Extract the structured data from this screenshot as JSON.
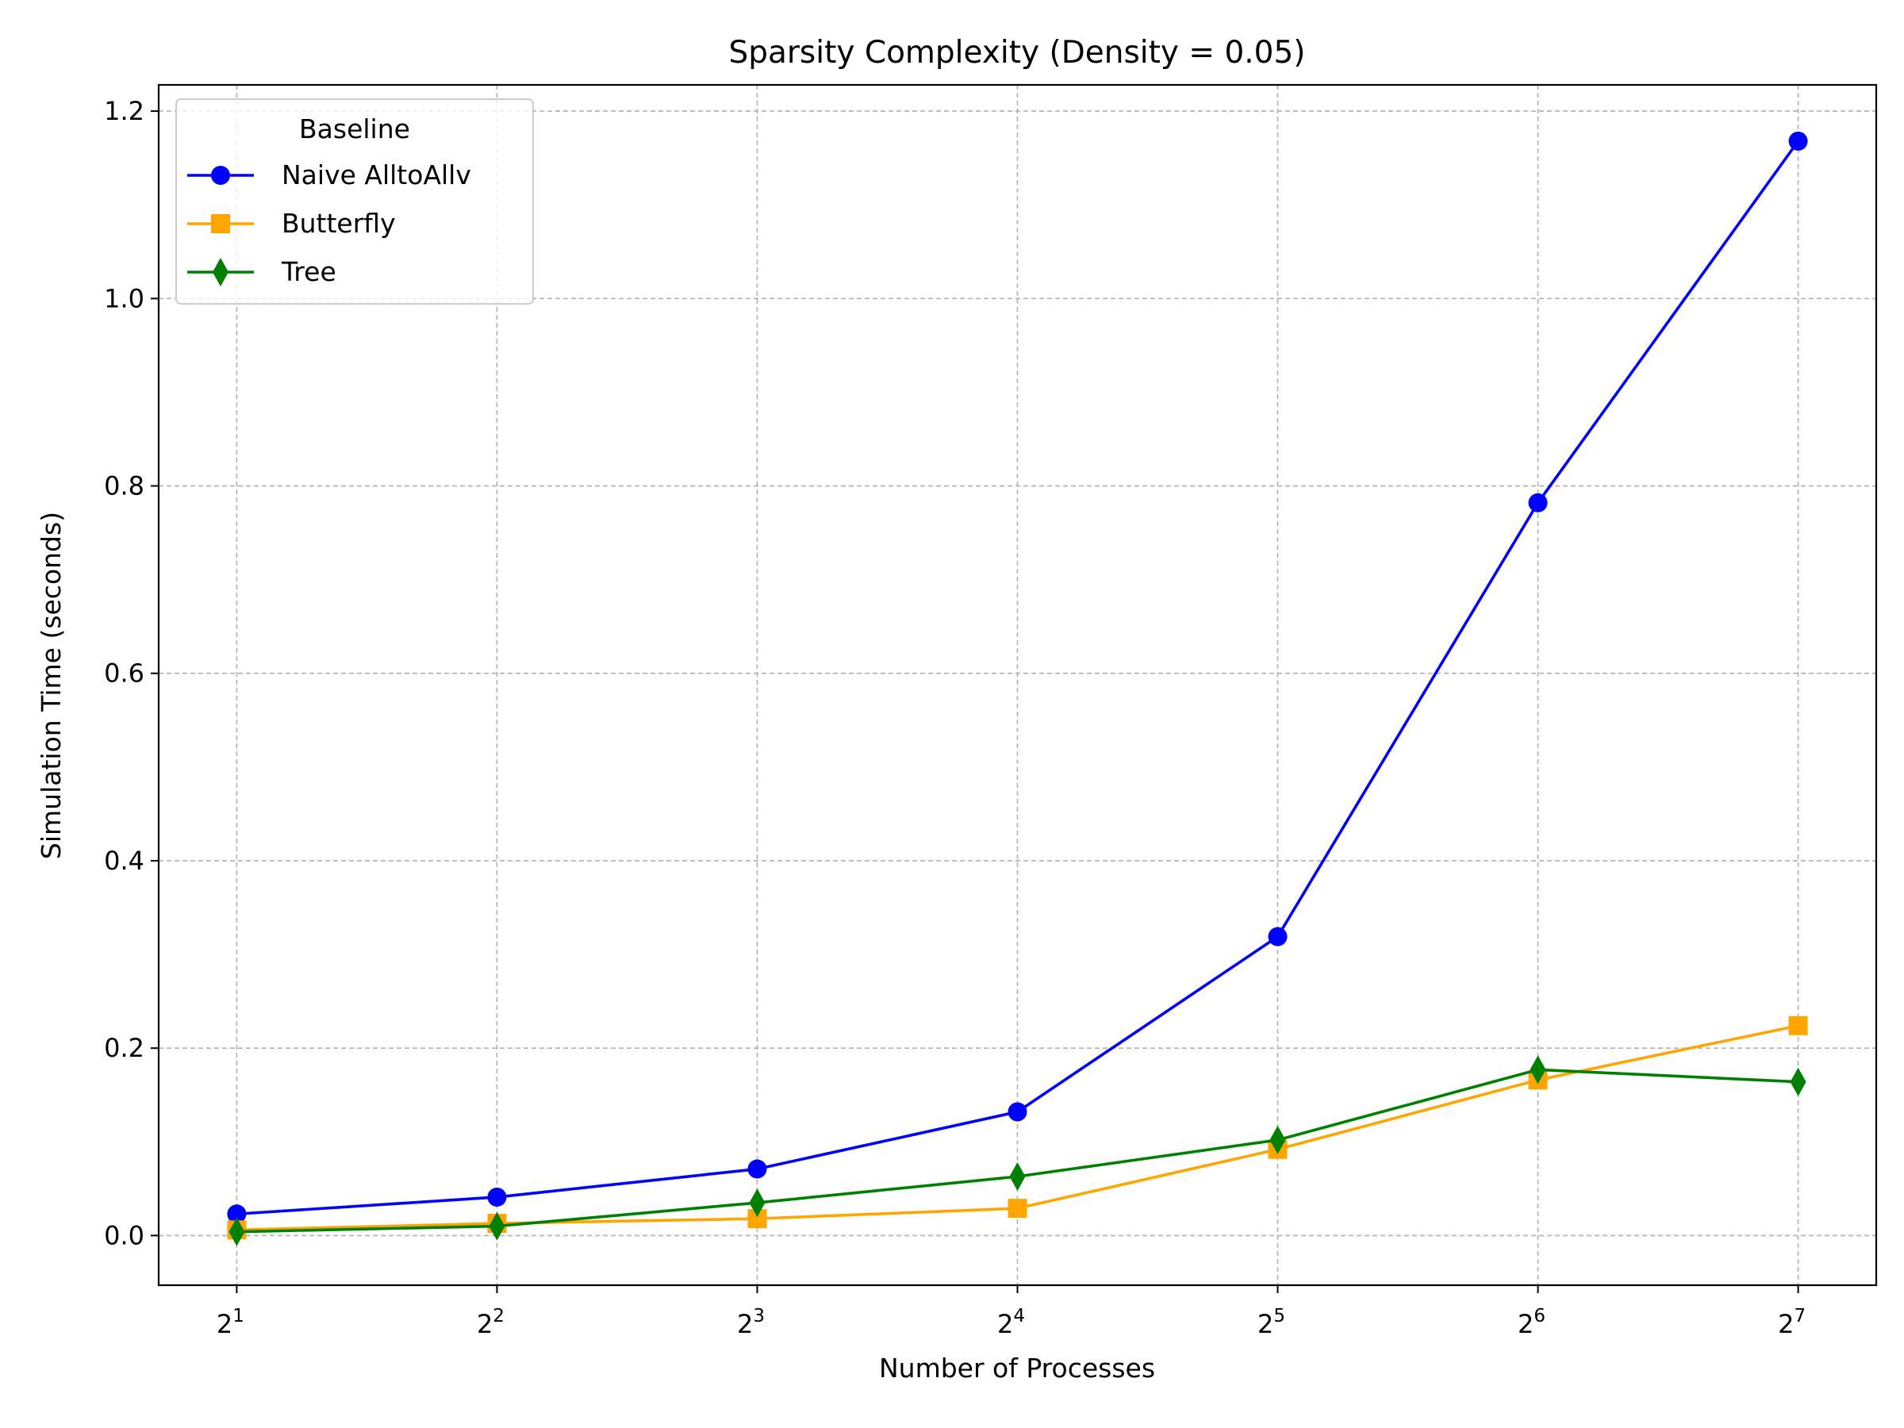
{
  "chart_data": {
    "type": "line",
    "title": "Sparsity Complexity (Density = 0.05)",
    "xlabel": "Number of Processes",
    "ylabel": "Simulation Time (seconds)",
    "x_scale": "log2",
    "x": [
      2,
      4,
      8,
      16,
      32,
      64,
      128
    ],
    "x_tick_labels": [
      {
        "base": "2",
        "exp": "1"
      },
      {
        "base": "2",
        "exp": "2"
      },
      {
        "base": "2",
        "exp": "3"
      },
      {
        "base": "2",
        "exp": "4"
      },
      {
        "base": "2",
        "exp": "5"
      },
      {
        "base": "2",
        "exp": "6"
      },
      {
        "base": "2",
        "exp": "7"
      }
    ],
    "y_ticks": [
      "0.0",
      "0.2",
      "0.4",
      "0.6",
      "0.8",
      "1.0",
      "1.2"
    ],
    "ylim": [
      -0.053,
      1.228
    ],
    "grid": true,
    "legend_title": "Baseline",
    "legend_position": "upper-left",
    "series": [
      {
        "name": "Naive AlltoAllv",
        "color": "#0000ff",
        "marker": "circle",
        "values": [
          0.023,
          0.041,
          0.071,
          0.132,
          0.319,
          0.782,
          1.168
        ]
      },
      {
        "name": "Butterfly",
        "color": "#ffa500",
        "marker": "square",
        "values": [
          0.006,
          0.013,
          0.018,
          0.029,
          0.092,
          0.166,
          0.224
        ]
      },
      {
        "name": "Tree",
        "color": "#008000",
        "marker": "thin-diamond",
        "values": [
          0.004,
          0.01,
          0.035,
          0.063,
          0.102,
          0.177,
          0.164
        ]
      }
    ]
  }
}
